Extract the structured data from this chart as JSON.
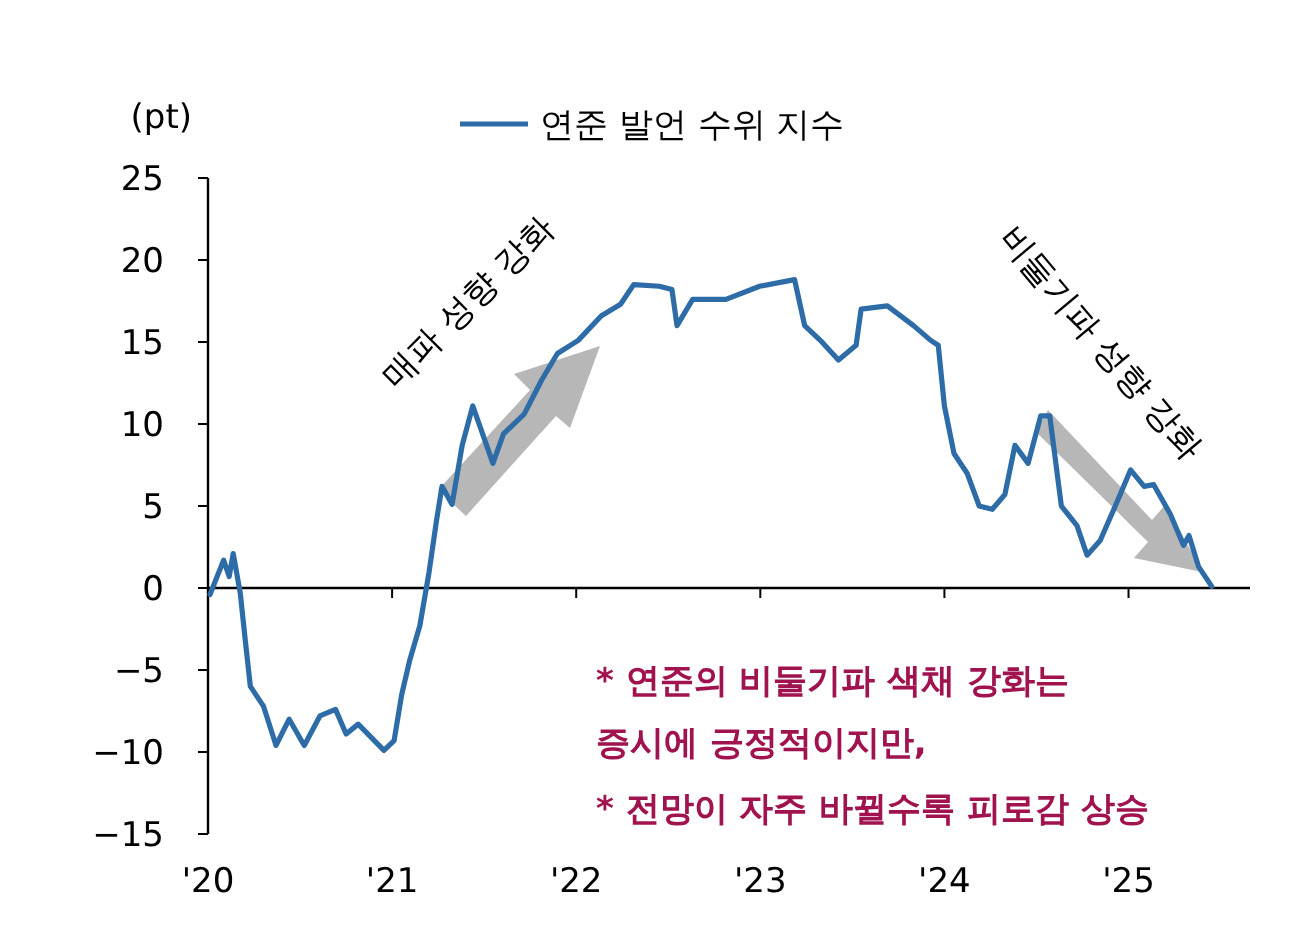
{
  "chart_data": {
    "type": "line",
    "ylabel": "(pt)",
    "legend": "top",
    "marker": "none",
    "line_style": "solid",
    "xlim": [
      "2020-01-01",
      "2025-08-30"
    ],
    "xticks": [
      {
        "value": "2020-01-01",
        "label": "'20"
      },
      {
        "value": "2021-01-01",
        "label": "'21"
      },
      {
        "value": "2022-01-01",
        "label": "'22"
      },
      {
        "value": "2023-01-01",
        "label": "'23"
      },
      {
        "value": "2024-01-01",
        "label": "'24"
      },
      {
        "value": "2025-01-01",
        "label": "'25"
      }
    ],
    "ylim": [
      -15,
      25
    ],
    "yticks": [
      -15,
      -10,
      -5,
      0,
      5,
      10,
      15,
      20,
      25
    ],
    "annotations": [
      "매파 성향 강화",
      "비둘기파 성향 강화",
      "* 연준의 비둘기파 색채 강화는",
      "증시에 긍정적이지만,",
      "* 전망이 자주 바뀔수록 피로감 상승"
    ],
    "series": [
      {
        "name": "연준 발언 수위 지수",
        "color": "#2e6ca8",
        "x": [
          "2020-01-05",
          "2020-02-01",
          "2020-02-12",
          "2020-02-20",
          "2020-03-05",
          "2020-03-15",
          "2020-03-25",
          "2020-04-20",
          "2020-05-15",
          "2020-06-10",
          "2020-07-10",
          "2020-08-10",
          "2020-09-10",
          "2020-10-01",
          "2020-10-25",
          "2020-12-15",
          "2021-01-05",
          "2021-01-20",
          "2021-02-05",
          "2021-02-25",
          "2021-03-15",
          "2021-03-30",
          "2021-04-10",
          "2021-04-30",
          "2021-05-20",
          "2021-06-10",
          "2021-07-20",
          "2021-08-10",
          "2021-09-20",
          "2021-10-25",
          "2021-11-25",
          "2022-01-05",
          "2022-02-20",
          "2022-03-30",
          "2022-04-25",
          "2022-06-15",
          "2022-07-10",
          "2022-07-20",
          "2022-08-20",
          "2022-10-25",
          "2022-12-31",
          "2023-03-10",
          "2023-03-30",
          "2023-04-30",
          "2023-06-05",
          "2023-07-10",
          "2023-07-20",
          "2023-09-10",
          "2023-11-01",
          "2023-12-05",
          "2023-12-20",
          "2024-01-01",
          "2024-01-20",
          "2024-02-15",
          "2024-03-10",
          "2024-04-05",
          "2024-04-30",
          "2024-05-20",
          "2024-06-15",
          "2024-07-10",
          "2024-07-28",
          "2024-08-20",
          "2024-09-20",
          "2024-10-10",
          "2024-11-05",
          "2024-12-05",
          "2025-01-05",
          "2025-02-01",
          "2025-02-20",
          "2025-03-25",
          "2025-04-20",
          "2025-05-01",
          "2025-05-20",
          "2025-06-15"
        ],
        "values": [
          -0.4,
          1.7,
          0.7,
          2.1,
          -0.3,
          -3.2,
          -6,
          -7.2,
          -9.6,
          -8,
          -9.6,
          -7.8,
          -7.4,
          -8.9,
          -8.3,
          -9.9,
          -9.3,
          -6.5,
          -4.4,
          -2.3,
          0.9,
          4.1,
          6.2,
          5.1,
          8.7,
          11.1,
          7.6,
          9.4,
          10.6,
          12.7,
          14.3,
          15.1,
          16.6,
          17.3,
          18.5,
          18.4,
          18.2,
          16,
          17.6,
          17.6,
          18.4,
          18.8,
          16,
          15.1,
          13.9,
          14.8,
          17,
          17.2,
          16,
          15.1,
          14.8,
          11.1,
          8.2,
          7,
          5,
          4.8,
          5.7,
          8.7,
          7.6,
          10.5,
          10.5,
          5,
          3.8,
          2,
          2.9,
          5,
          7.2,
          6.2,
          6.3,
          4.5,
          2.6,
          3.2,
          1.3,
          0.1
        ]
      }
    ]
  }
}
